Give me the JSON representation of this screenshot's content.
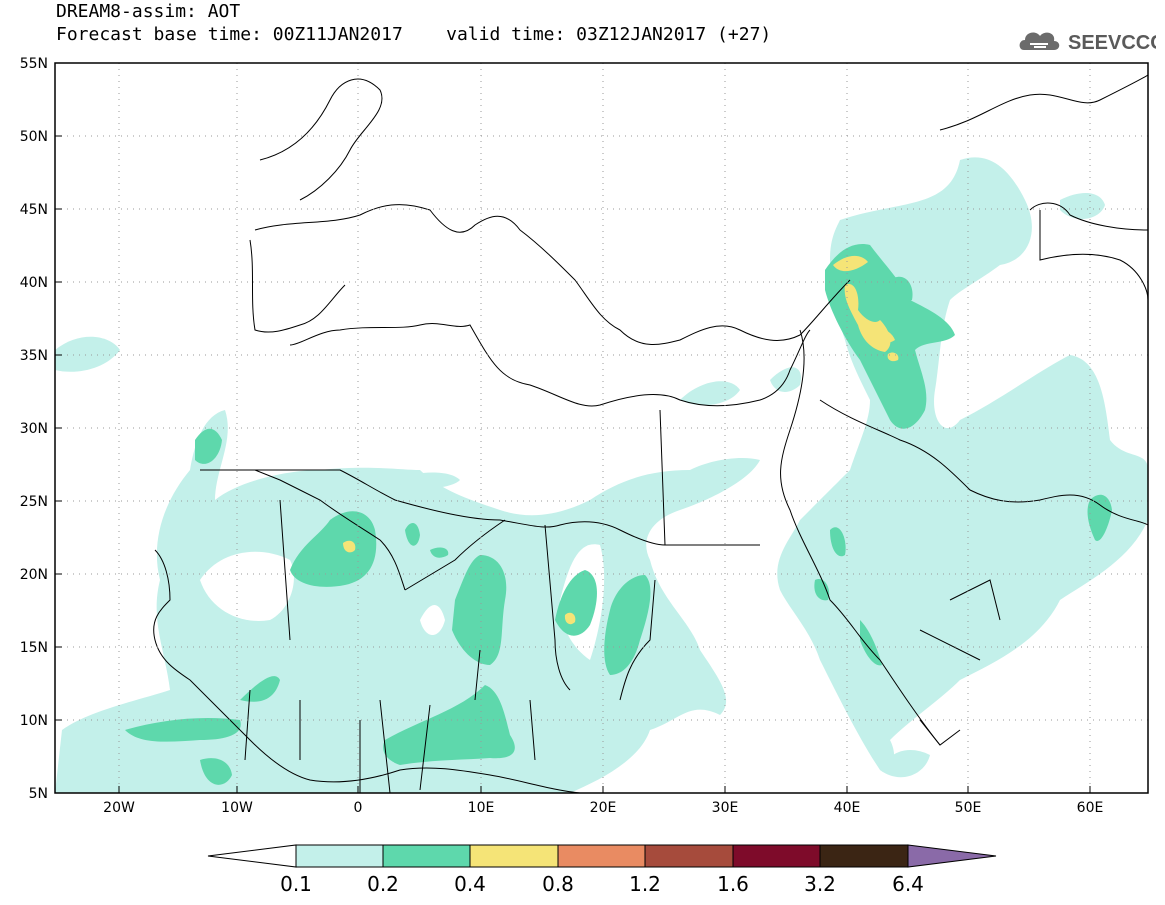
{
  "header": {
    "title_line_1": "DREAM8-assim: AOT",
    "title_line_2": "Forecast base time: 00Z11JAN2017    valid time: 03Z12JAN2017 (+27)"
  },
  "logo": {
    "text": "SEEVCCC",
    "icon": "cloud-icon"
  },
  "map": {
    "lon_range": [
      -25,
      65
    ],
    "lat_range": [
      5,
      55
    ],
    "lat_labels": [
      "5N",
      "10N",
      "15N",
      "20N",
      "25N",
      "30N",
      "35N",
      "40N",
      "45N",
      "50N",
      "55N"
    ],
    "lon_labels": [
      "20W",
      "10W",
      "0",
      "10E",
      "20E",
      "30E",
      "40E",
      "50E",
      "60E"
    ],
    "grid": "dotted"
  },
  "legend": {
    "colors": [
      "#c3f0ea",
      "#5ed8ac",
      "#f5e477",
      "#e98b62",
      "#a64b3c",
      "#7e0b2a",
      "#3b2514",
      "#8a6aa8"
    ],
    "labels": [
      "0.1",
      "0.2",
      "0.4",
      "0.8",
      "1.2",
      "1.6",
      "3.2",
      "6.4"
    ]
  }
}
